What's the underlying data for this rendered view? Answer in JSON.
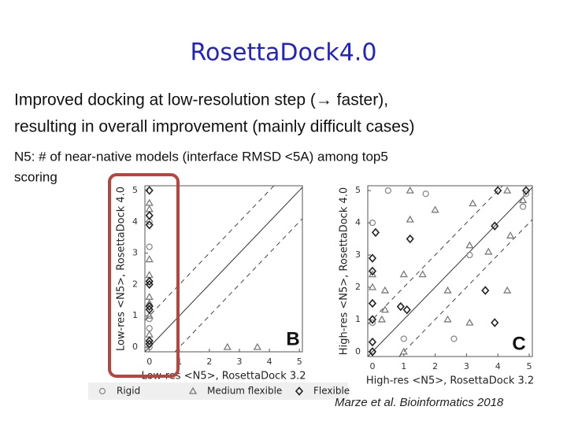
{
  "title": "RosettaDock4.0",
  "body": [
    "Improved docking at low-resolution step (→ faster),",
    "resulting in overall improvement (mainly difficult cases)"
  ],
  "note": [
    "N5: # of near-native models (interface RMSD <5A) among top5",
    "scoring"
  ],
  "citation": "Marze et al. Bioinformatics 2018",
  "chart_data": [
    {
      "type": "scatter",
      "panel_label": "B",
      "xlabel": "Low-res <N5>, RosettaDock 3.2",
      "ylabel": "Low-res <N5>, RosettaDock 4.0",
      "xlim": [
        -0.15,
        5.1
      ],
      "ylim": [
        -0.15,
        5.15
      ],
      "xticks": [
        0,
        1,
        2,
        3,
        4,
        5
      ],
      "yticks": [
        0,
        1,
        2,
        3,
        4,
        5
      ],
      "series": [
        {
          "name": "Rigid",
          "marker": "circle",
          "color": "#8a8a8a",
          "x": [
            0,
            0,
            0,
            0,
            0
          ],
          "values": [
            4.0,
            3.2,
            0.9,
            0.6,
            0.0
          ]
        },
        {
          "name": "Medium flexible",
          "marker": "triangle",
          "color": "#7a7a7a",
          "x": [
            0,
            0,
            0,
            0,
            0,
            0,
            0,
            0,
            2.6,
            3.6
          ],
          "values": [
            4.6,
            4.4,
            2.8,
            2.3,
            1.6,
            1.4,
            1.0,
            0.4,
            0,
            0
          ]
        },
        {
          "name": "Flexible",
          "marker": "diamond",
          "color": "#222222",
          "x": [
            0,
            0,
            0,
            0,
            0,
            0,
            0,
            0,
            0
          ],
          "values": [
            5,
            4.2,
            3.9,
            2.1,
            2.0,
            1.3,
            1.2,
            0.2,
            0.1
          ]
        }
      ]
    },
    {
      "type": "scatter",
      "panel_label": "C",
      "xlabel": "High-res <N5>, RosettaDock 3.2",
      "ylabel": "High-res <N5>, RosettaDock 4.0",
      "xlim": [
        -0.15,
        5.1
      ],
      "ylim": [
        -0.15,
        5.15
      ],
      "xticks": [
        0,
        1,
        2,
        3,
        4,
        5
      ],
      "yticks": [
        0,
        1,
        2,
        3,
        4,
        5
      ],
      "series": [
        {
          "marker": "circle",
          "color": "#8a8a8a",
          "x": [
            0.5,
            4.9,
            1.7,
            4.8,
            0,
            3.1,
            0,
            1.0,
            2.6,
            0
          ],
          "values": [
            5,
            4.9,
            4.9,
            4.5,
            4,
            3.0,
            0.9,
            0.4,
            0.4,
            0
          ]
        },
        {
          "marker": "triangle",
          "color": "#7a7a7a",
          "x": [
            1.2,
            4.3,
            4.8,
            3.2,
            2.0,
            1.2,
            4.4,
            3.1,
            3.7,
            0,
            1.0,
            1.6,
            0,
            2.4,
            0.4,
            4.3,
            0.4,
            0.3,
            2.4,
            3.1,
            1.0
          ],
          "values": [
            5,
            5,
            4.7,
            4.6,
            4.4,
            4.1,
            3.6,
            3.3,
            3.1,
            2.4,
            2.4,
            2.4,
            2.0,
            1.9,
            1.9,
            1.9,
            1.3,
            1.0,
            1.0,
            0.9,
            0
          ]
        },
        {
          "marker": "diamond",
          "color": "#222222",
          "x": [
            4,
            4.9,
            3.9,
            0.1,
            1.2,
            0,
            0,
            3.6,
            0.9,
            1.1,
            0,
            0,
            3.9,
            0,
            0
          ],
          "values": [
            5,
            5,
            3.9,
            3.7,
            3.5,
            2.9,
            2.5,
            1.9,
            1.4,
            1.3,
            1.5,
            1.0,
            0.9,
            0.3,
            0
          ]
        }
      ]
    }
  ]
}
